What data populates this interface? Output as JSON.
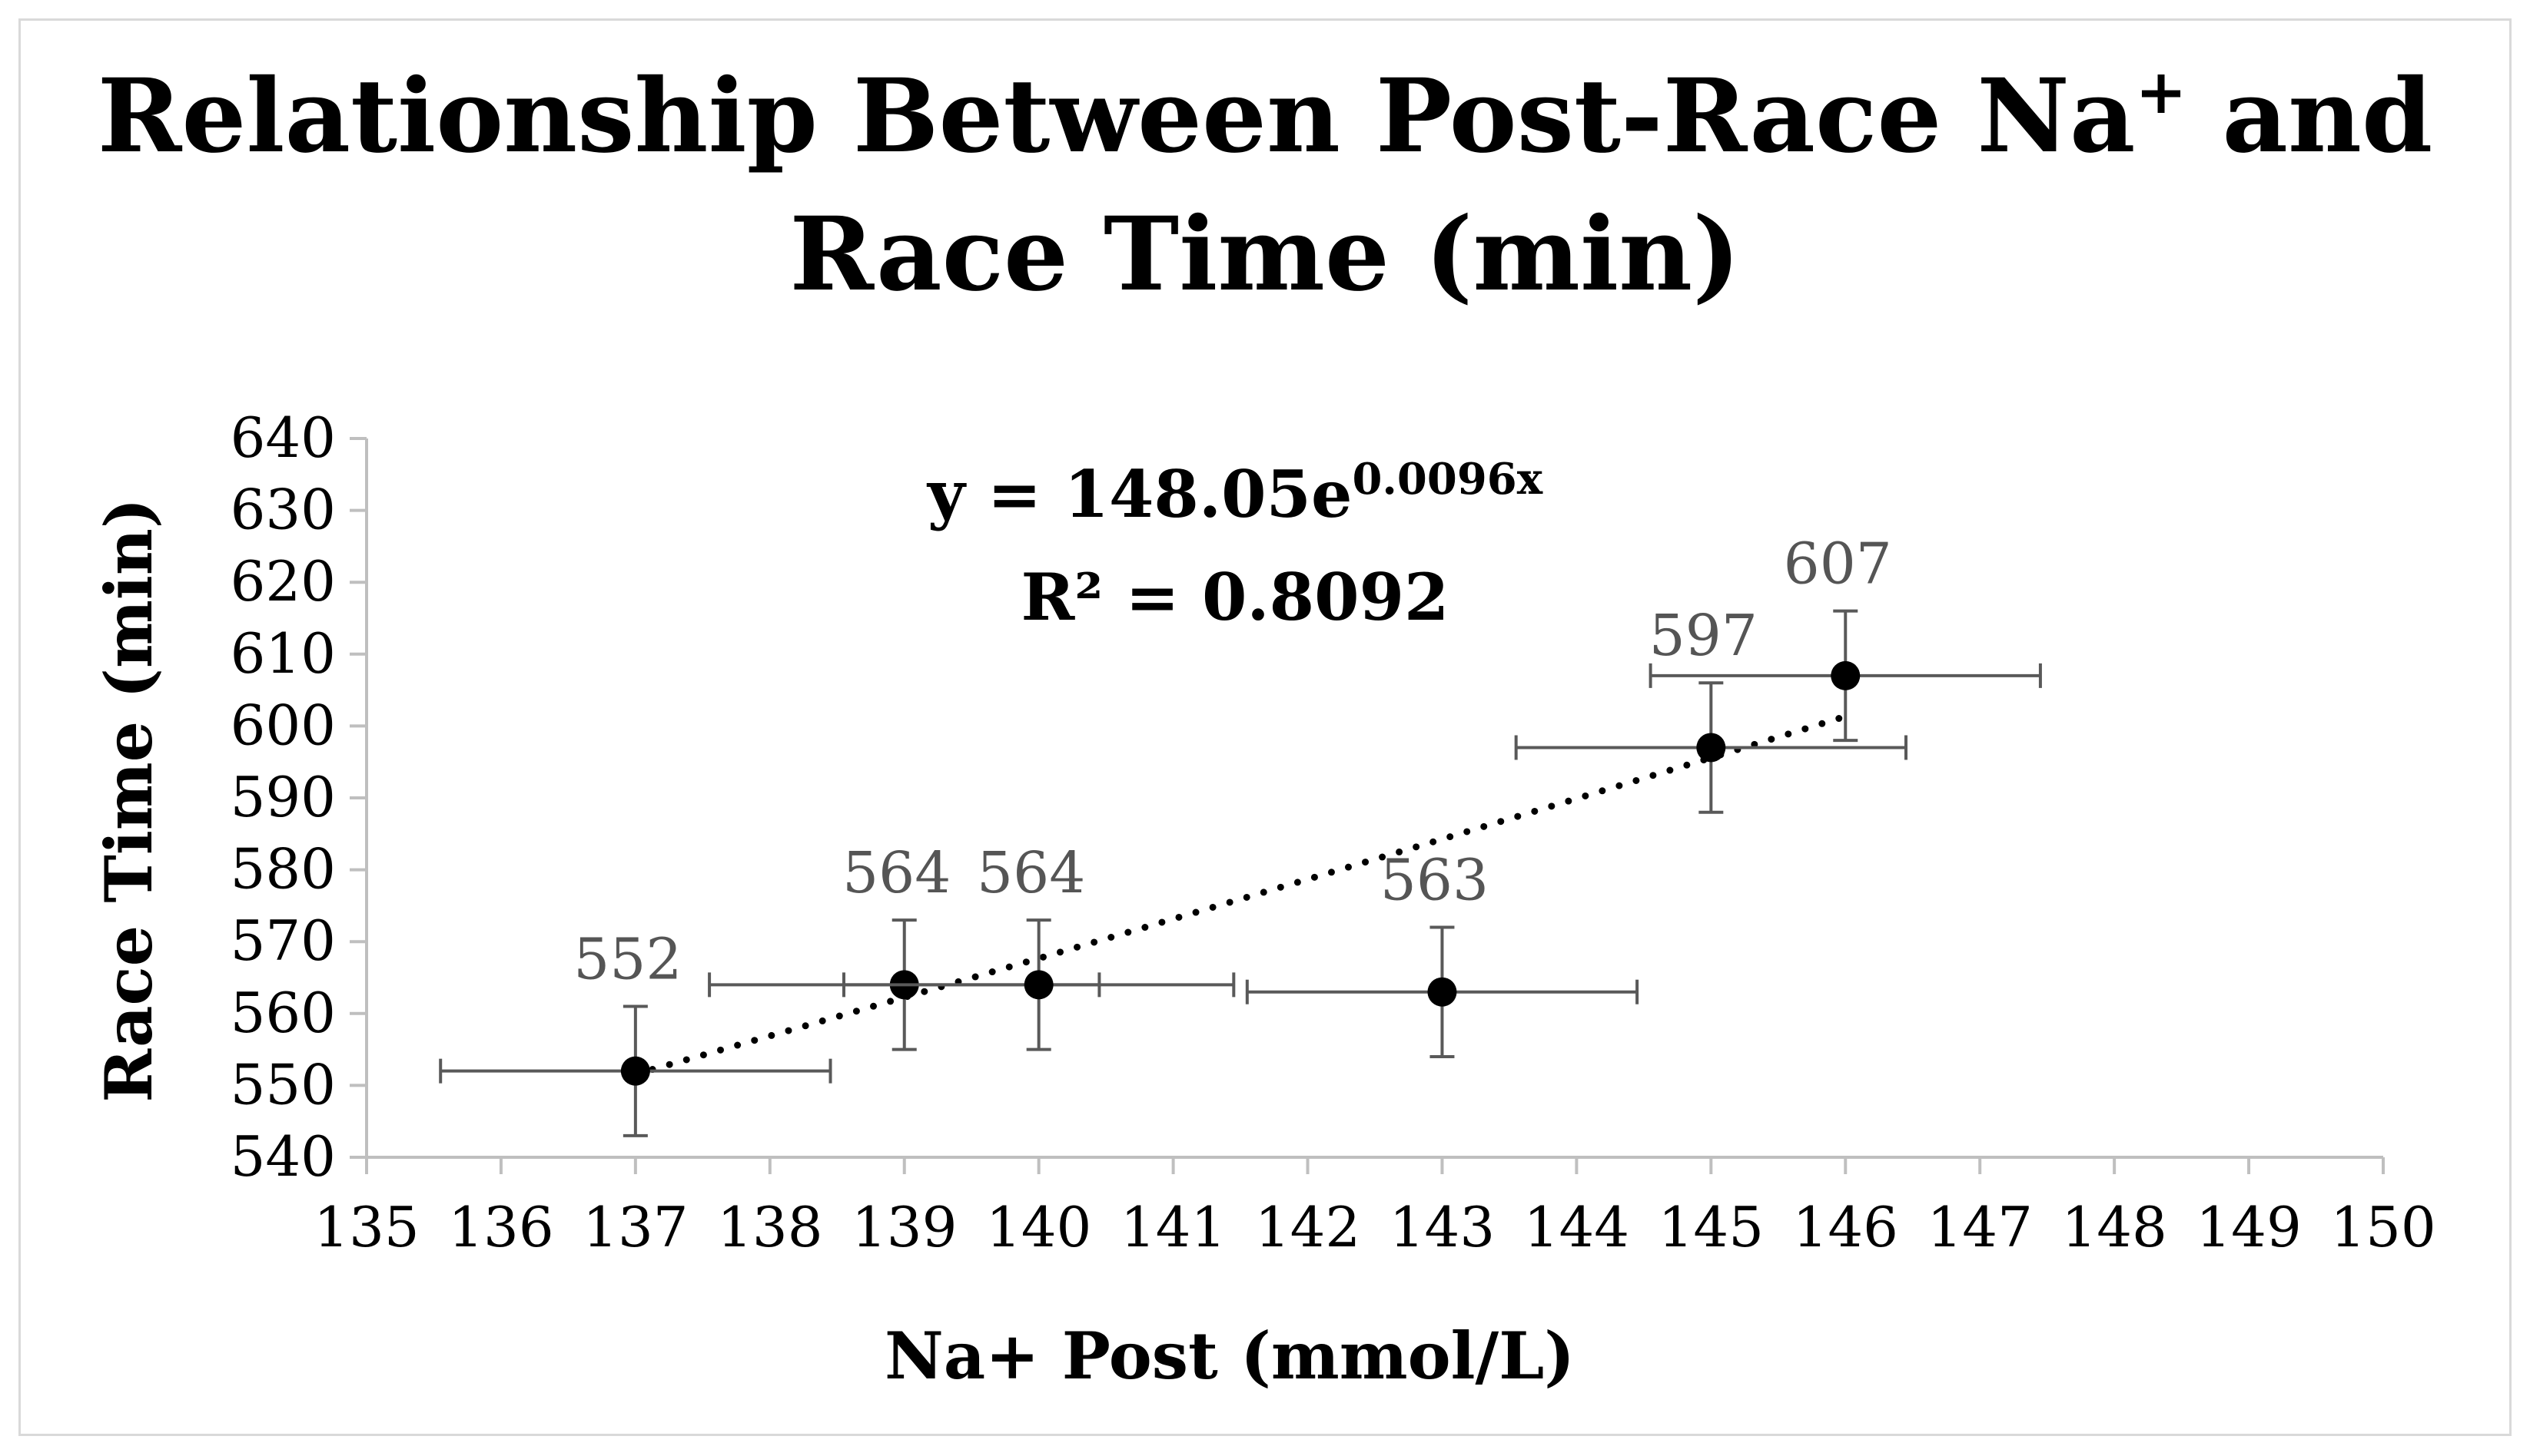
{
  "chart_data": {
    "type": "scatter",
    "title_line1": "Relationship Between Post-Race Na",
    "title_superscript": "+",
    "title_line1_end": " and",
    "title_line2": "Race Time (min)",
    "xlabel": "Na+ Post (mmol/L)",
    "ylabel": "Race Time (min)",
    "xlim": [
      135,
      150
    ],
    "ylim": [
      540,
      640
    ],
    "x_ticks": [
      "135",
      "136",
      "137",
      "138",
      "139",
      "140",
      "141",
      "142",
      "143",
      "144",
      "145",
      "146",
      "147",
      "148",
      "149",
      "150"
    ],
    "y_ticks": [
      "540",
      "550",
      "560",
      "570",
      "580",
      "590",
      "600",
      "610",
      "620",
      "630",
      "640"
    ],
    "grid": false,
    "points": [
      {
        "x": 137,
        "y": 552,
        "label": "552",
        "x_err": 1.45,
        "y_err": 9
      },
      {
        "x": 139,
        "y": 564,
        "label": "564",
        "x_err": 1.45,
        "y_err": 9
      },
      {
        "x": 140,
        "y": 564,
        "label": "564",
        "x_err": 1.45,
        "y_err": 9
      },
      {
        "x": 143,
        "y": 563,
        "label": "563",
        "x_err": 1.45,
        "y_err": 9
      },
      {
        "x": 145,
        "y": 597,
        "label": "597",
        "x_err": 1.45,
        "y_err": 9
      },
      {
        "x": 146,
        "y": 607,
        "label": "607",
        "x_err": 1.45,
        "y_err": 9
      }
    ],
    "trendline": {
      "type": "exponential",
      "a": 148.05,
      "b": 0.0096,
      "x_range": [
        137,
        146
      ],
      "style": "dotted",
      "equation_prefix": "y = 148.05e",
      "equation_exponent": "0.0096x",
      "r_squared_text": "R² = 0.8092"
    },
    "colors": {
      "marker": "#000000",
      "error_bar": "#595959",
      "axis": "#bfbfbf",
      "trendline": "#000000"
    }
  }
}
